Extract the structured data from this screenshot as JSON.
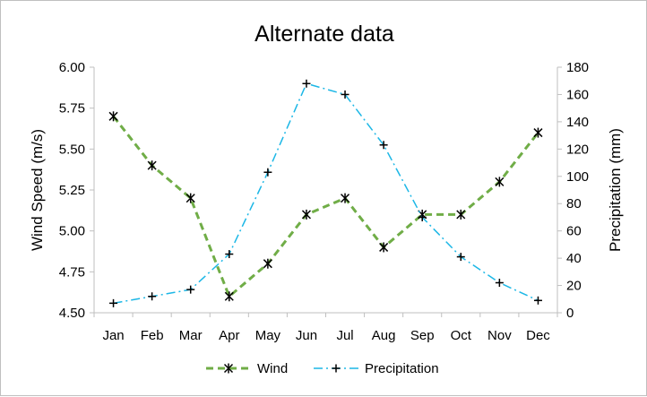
{
  "chart_data": {
    "type": "line",
    "title": "Alternate data",
    "categories": [
      "Jan",
      "Feb",
      "Mar",
      "Apr",
      "May",
      "Jun",
      "Jul",
      "Aug",
      "Sep",
      "Oct",
      "Nov",
      "Dec"
    ],
    "y_left": {
      "label": "Wind Speed (m/s)",
      "range": [
        4.5,
        6.0
      ],
      "ticks": [
        "4.50",
        "4.75",
        "5.00",
        "5.25",
        "5.50",
        "5.75",
        "6.00"
      ]
    },
    "y_right": {
      "label": "Precipitation (mm)",
      "range": [
        0,
        180
      ],
      "ticks": [
        "0",
        "20",
        "40",
        "60",
        "80",
        "100",
        "120",
        "140",
        "160",
        "180"
      ]
    },
    "series": [
      {
        "name": "Wind",
        "axis": "left",
        "color": "#70ad47",
        "line_style": "dashed",
        "marker": "asterisk",
        "values": [
          5.7,
          5.4,
          5.2,
          4.6,
          4.8,
          5.1,
          5.2,
          4.9,
          5.1,
          5.1,
          5.3,
          5.6
        ]
      },
      {
        "name": "Precipitation",
        "axis": "right",
        "color": "#1cb7e6",
        "line_style": "dash-dot",
        "marker": "plus",
        "values": [
          7,
          12,
          17,
          43,
          103,
          168,
          160,
          123,
          70,
          41,
          22,
          9
        ]
      }
    ],
    "grid": false,
    "legend_position": "bottom"
  }
}
